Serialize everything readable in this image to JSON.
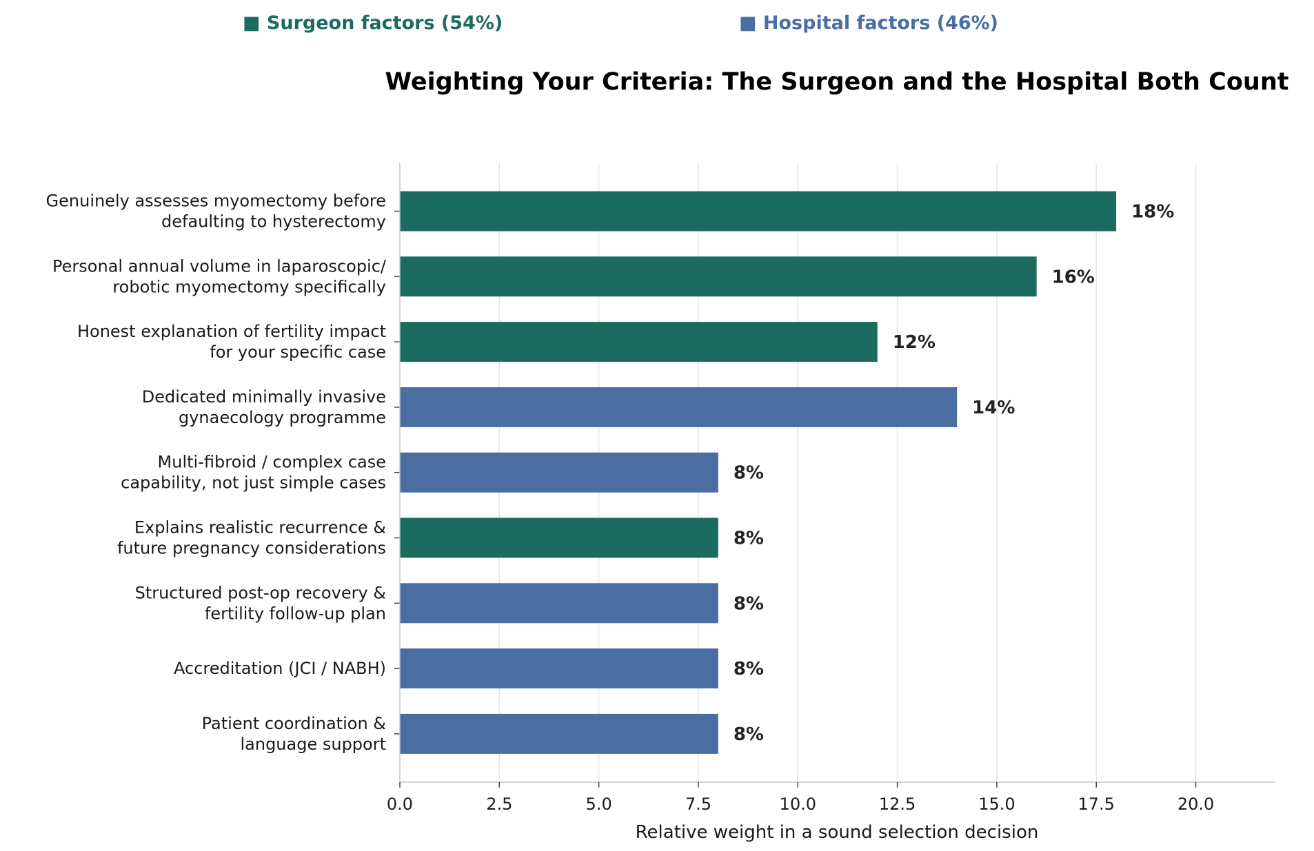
{
  "chart_data": {
    "type": "bar",
    "orientation": "horizontal",
    "title": "Weighting Your Criteria: The Surgeon and the Hospital Both Count",
    "xlabel": "Relative weight in a sound selection decision",
    "ylabel": "",
    "xlim": [
      0,
      22
    ],
    "xticks": [
      "0.0",
      "2.5",
      "5.0",
      "7.5",
      "10.0",
      "12.5",
      "15.0",
      "17.5",
      "20.0"
    ],
    "grid": "vertical",
    "legend": [
      {
        "label": "Surgeon factors (54%)",
        "marker": "■",
        "color": "#1b6b60"
      },
      {
        "label": "Hospital factors (46%)",
        "marker": "■",
        "color": "#4a6ea2"
      }
    ],
    "legend_position": "top",
    "colors": {
      "surgeon": "#1b6b60",
      "hospital": "#4a6ea2"
    },
    "bars": [
      {
        "label": [
          "Genuinely assesses myomectomy before",
          "defaulting to hysterectomy"
        ],
        "value": 18,
        "value_label": "18%",
        "group": "surgeon"
      },
      {
        "label": [
          "Personal annual volume in laparoscopic/",
          "robotic myomectomy specifically"
        ],
        "value": 16,
        "value_label": "16%",
        "group": "surgeon"
      },
      {
        "label": [
          "Honest explanation of fertility impact",
          "for your specific case"
        ],
        "value": 12,
        "value_label": "12%",
        "group": "surgeon"
      },
      {
        "label": [
          "Dedicated minimally invasive",
          "gynaecology programme"
        ],
        "value": 14,
        "value_label": "14%",
        "group": "hospital"
      },
      {
        "label": [
          "Multi-fibroid / complex case",
          "capability, not just simple cases"
        ],
        "value": 8,
        "value_label": "8%",
        "group": "hospital"
      },
      {
        "label": [
          "Explains realistic recurrence &",
          "future pregnancy considerations"
        ],
        "value": 8,
        "value_label": "8%",
        "group": "surgeon"
      },
      {
        "label": [
          "Structured post-op recovery &",
          "fertility follow-up plan"
        ],
        "value": 8,
        "value_label": "8%",
        "group": "hospital"
      },
      {
        "label": [
          "Accreditation (JCI / NABH)"
        ],
        "value": 8,
        "value_label": "8%",
        "group": "hospital"
      },
      {
        "label": [
          "Patient coordination &",
          "language support"
        ],
        "value": 8,
        "value_label": "8%",
        "group": "hospital"
      }
    ]
  }
}
